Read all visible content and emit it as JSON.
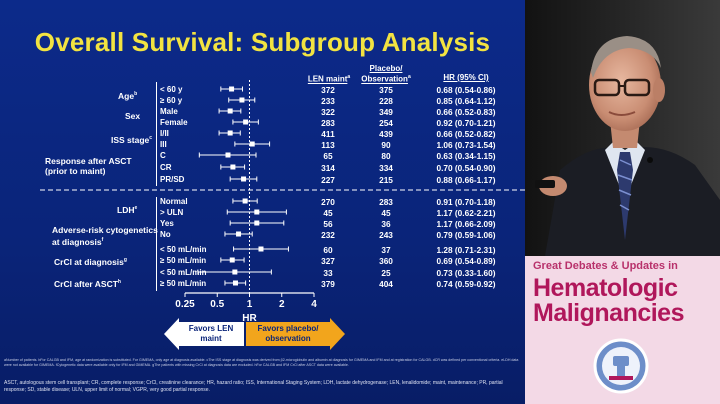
{
  "slide": {
    "title": "Overall Survival: Subgroup Analysis",
    "headers": {
      "len": "LEN maint",
      "len_sup": "a",
      "placebo_line1": "Placebo/",
      "placebo_line2": "Observation",
      "placebo_sup": "a",
      "hr": "HR (95% CI)"
    },
    "groups": [
      {
        "label": "Age",
        "sup": "b"
      },
      {
        "label": "Sex",
        "sup": ""
      },
      {
        "label": "ISS stage",
        "sup": "c"
      },
      {
        "label": "Response after ASCT",
        "label2": "(prior to maint)",
        "sup": ""
      },
      {
        "label": "LDH",
        "sup": "e"
      },
      {
        "label": "Adverse-risk cytogenetics",
        "label2": "at diagnosis",
        "sup": "f"
      },
      {
        "label": "CrCl at diagnosis",
        "sup": "g"
      },
      {
        "label": "CrCl after ASCT",
        "sup": "h"
      }
    ],
    "rows": [
      {
        "sub": "< 60 y",
        "len": "372",
        "pbo": "375",
        "hr": "0.68 (0.54-0.86)"
      },
      {
        "sub": "≥ 60 y",
        "len": "233",
        "pbo": "228",
        "hr": "0.85 (0.64-1.12)"
      },
      {
        "sub": "Male",
        "len": "322",
        "pbo": "349",
        "hr": "0.66 (0.52-0.83)"
      },
      {
        "sub": "Female",
        "len": "283",
        "pbo": "254",
        "hr": "0.92 (0.70-1.21)"
      },
      {
        "sub": "I/II",
        "len": "411",
        "pbo": "439",
        "hr": "0.66 (0.52-0.82)"
      },
      {
        "sub": "III",
        "len": "113",
        "pbo": "90",
        "hr": "1.06 (0.73-1.54)"
      },
      {
        "sub": "C",
        "len": "65",
        "pbo": "80",
        "hr": "0.63 (0.34-1.15)"
      },
      {
        "sub": "CR",
        "len": "314",
        "pbo": "334",
        "hr": "0.70 (0.54-0.90)"
      },
      {
        "sub": "PR/SD",
        "len": "227",
        "pbo": "215",
        "hr": "0.88 (0.66-1.17)"
      },
      {
        "sub": "Normal",
        "len": "270",
        "pbo": "283",
        "hr": "0.91 (0.70-1.18)"
      },
      {
        "sub": "> ULN",
        "len": "45",
        "pbo": "45",
        "hr": "1.17 (0.62-2.21)"
      },
      {
        "sub": "Yes",
        "len": "56",
        "pbo": "36",
        "hr": "1.17 (0.66-2.09)"
      },
      {
        "sub": "No",
        "len": "232",
        "pbo": "243",
        "hr": "0.79 (0.59-1.06)"
      },
      {
        "sub": "< 50 mL/min",
        "len": "60",
        "pbo": "37",
        "hr": "1.28 (0.71-2.31)"
      },
      {
        "sub": "≥ 50 mL/min",
        "len": "327",
        "pbo": "360",
        "hr": "0.69 (0.54-0.89)"
      },
      {
        "sub": "< 50 mL/min",
        "len": "33",
        "pbo": "25",
        "hr": "0.73 (0.33-1.60)"
      },
      {
        "sub": "≥ 50 mL/min",
        "len": "379",
        "pbo": "404",
        "hr": "0.74 (0.59-0.92)"
      }
    ],
    "axis_label": "HR",
    "favors_len": "Favors LEN maint",
    "favors_placebo": "Favors placebo/ observation",
    "footnote_fine": "aNumber of patients. bFor CALGB and IFM, age at randomization is substituted. For GIMEMA, only age at diagnosis available. cThe ISS stage at diagnosis was derived from β2-microglobulin and albumin at diagnosis for GIMEMA and IFM and at registration for CALGB. dCR was defined per conventional criteria. eLDH data were not available for GIMEMA. fCytogenetic data were available only for IFM and GIMEMA. gThe patients with missing CrCl at diagnosis data are excluded. hFor CALGB and IFM CrCl after ASCT data were available.",
    "footnote_abbr": "ASCT, autologous stem cell transplant; CR, complete response; CrCl, creatinine clearance; HR, hazard ratio; ISS, International Staging System; LDH, lactate dehydrogenase; LEN, lenalidomide; maint, maintenance; PR, partial response; SD, stable disease; ULN, upper limit of normal; VGPR, very good partial response."
  },
  "brand": {
    "tagline": "Great Debates & Updates in",
    "line1": "Hematologic",
    "line2": "Malignancies"
  },
  "chart_data": {
    "type": "scatter",
    "title": "Overall Survival: Subgroup Analysis",
    "xlabel": "HR",
    "xscale": "log",
    "xticks": [
      0.25,
      0.5,
      1,
      2,
      4
    ],
    "xlim": [
      0.25,
      4
    ],
    "reference_line": 1,
    "categories": [
      "< 60 y",
      "≥ 60 y",
      "Male",
      "Female",
      "I/II",
      "III",
      "C",
      "CR",
      "PR/SD",
      "Normal",
      "> ULN",
      "Yes",
      "No",
      "< 50 mL/min",
      "≥ 50 mL/min",
      "< 50 mL/min",
      "≥ 50 mL/min"
    ],
    "hr": [
      0.68,
      0.85,
      0.66,
      0.92,
      0.66,
      1.06,
      0.63,
      0.7,
      0.88,
      0.91,
      1.17,
      1.17,
      0.79,
      1.28,
      0.69,
      0.73,
      0.74
    ],
    "ci_low": [
      0.54,
      0.64,
      0.52,
      0.7,
      0.52,
      0.73,
      0.34,
      0.54,
      0.66,
      0.7,
      0.62,
      0.66,
      0.59,
      0.71,
      0.54,
      0.33,
      0.59
    ],
    "ci_high": [
      0.86,
      1.12,
      0.83,
      1.21,
      0.82,
      1.54,
      1.15,
      0.9,
      1.17,
      1.18,
      2.21,
      2.09,
      1.06,
      2.31,
      0.89,
      1.6,
      0.92
    ],
    "colors": {
      "marker": "#ffffff",
      "line": "#ffffff"
    }
  }
}
